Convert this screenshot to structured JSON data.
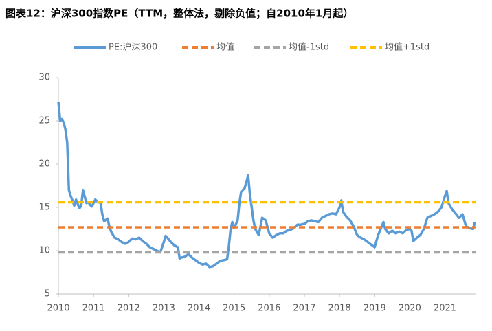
{
  "chart_data": {
    "type": "line",
    "title": "图表12：沪深300指数PE（TTM，整体法，剔除负值；自2010年1月起）",
    "x": [
      2010.0,
      2010.05,
      2010.1,
      2010.15,
      2010.2,
      2010.25,
      2010.3,
      2010.35,
      2010.4,
      2010.45,
      2010.5,
      2010.55,
      2010.6,
      2010.65,
      2010.7,
      2010.75,
      2010.8,
      2010.85,
      2010.9,
      2010.95,
      2011.0,
      2011.05,
      2011.1,
      2011.2,
      2011.25,
      2011.3,
      2011.4,
      2011.45,
      2011.5,
      2011.6,
      2011.7,
      2011.8,
      2011.9,
      2012.0,
      2012.1,
      2012.2,
      2012.3,
      2012.4,
      2012.5,
      2012.6,
      2012.7,
      2012.8,
      2012.9,
      2013.0,
      2013.05,
      2013.1,
      2013.2,
      2013.3,
      2013.4,
      2013.45,
      2013.5,
      2013.6,
      2013.7,
      2013.8,
      2013.9,
      2014.0,
      2014.1,
      2014.2,
      2014.3,
      2014.4,
      2014.5,
      2014.6,
      2014.7,
      2014.8,
      2014.85,
      2014.9,
      2014.95,
      2015.0,
      2015.1,
      2015.15,
      2015.2,
      2015.3,
      2015.4,
      2015.45,
      2015.5,
      2015.55,
      2015.6,
      2015.7,
      2015.8,
      2015.9,
      2016.0,
      2016.1,
      2016.2,
      2016.3,
      2016.4,
      2016.5,
      2016.6,
      2016.7,
      2016.8,
      2016.9,
      2017.0,
      2017.1,
      2017.2,
      2017.3,
      2017.4,
      2017.5,
      2017.6,
      2017.7,
      2017.8,
      2017.9,
      2018.0,
      2018.05,
      2018.1,
      2018.2,
      2018.3,
      2018.4,
      2018.5,
      2018.6,
      2018.7,
      2018.8,
      2018.9,
      2019.0,
      2019.1,
      2019.2,
      2019.25,
      2019.3,
      2019.4,
      2019.5,
      2019.6,
      2019.7,
      2019.8,
      2019.9,
      2020.0,
      2020.05,
      2020.1,
      2020.2,
      2020.3,
      2020.4,
      2020.5,
      2020.6,
      2020.7,
      2020.8,
      2020.9,
      2021.0,
      2021.05,
      2021.1,
      2021.2,
      2021.3,
      2021.4,
      2021.5,
      2021.55,
      2021.6,
      2021.7,
      2021.8,
      2021.85
    ],
    "series": [
      {
        "name": "PE:沪深300",
        "color": "#5b9bd5",
        "values": [
          27.2,
          25,
          25.2,
          24.8,
          24.0,
          22.5,
          17,
          16.3,
          15.8,
          15.2,
          15.9,
          15.4,
          14.9,
          15.2,
          17.0,
          16.2,
          15.5,
          15.6,
          15.3,
          15.1,
          15.5,
          15.9,
          15.7,
          15.5,
          14.2,
          13.4,
          13.7,
          12.8,
          12.2,
          11.5,
          11.3,
          11.0,
          10.8,
          11.0,
          11.4,
          11.3,
          11.5,
          11.1,
          10.8,
          10.4,
          10.2,
          10.0,
          9.8,
          11.0,
          11.7,
          11.5,
          11.0,
          10.6,
          10.4,
          9.1,
          9.2,
          9.3,
          9.6,
          9.2,
          8.9,
          8.6,
          8.4,
          8.5,
          8.1,
          8.2,
          8.5,
          8.8,
          8.9,
          9.0,
          10.5,
          12.5,
          13.3,
          12.6,
          13.5,
          15.5,
          16.8,
          17.2,
          18.7,
          16.5,
          15.0,
          13.5,
          12.5,
          11.8,
          13.8,
          13.5,
          12.0,
          11.5,
          11.8,
          12.0,
          12.0,
          12.3,
          12.4,
          12.6,
          13.0,
          13.0,
          13.1,
          13.4,
          13.5,
          13.4,
          13.3,
          13.8,
          14.0,
          14.2,
          14.3,
          14.2,
          15.0,
          15.8,
          14.5,
          13.9,
          13.5,
          12.8,
          11.8,
          11.5,
          11.3,
          11.0,
          10.7,
          10.4,
          11.8,
          12.8,
          13.3,
          12.5,
          12.0,
          12.3,
          12.0,
          12.2,
          12.0,
          12.4,
          12.5,
          12.3,
          11.1,
          11.5,
          11.8,
          12.5,
          13.8,
          14.0,
          14.2,
          14.5,
          15.0,
          16.3,
          16.9,
          15.5,
          14.8,
          14.3,
          13.8,
          14.2,
          13.5,
          12.8,
          12.6,
          12.5,
          13.3
        ]
      },
      {
        "name": "均值",
        "color": "#ed7d31",
        "dashed": true,
        "value": 12.7
      },
      {
        "name": "均值-1std",
        "color": "#a5a5a5",
        "dashed": true,
        "value": 9.8
      },
      {
        "name": "均值+1std",
        "color": "#ffc000",
        "dashed": true,
        "value": 15.6
      }
    ],
    "xlim": [
      2010,
      2021.87
    ],
    "xticks": [
      2010,
      2011,
      2012,
      2013,
      2014,
      2015,
      2016,
      2017,
      2018,
      2019,
      2020,
      2021
    ],
    "ylim": [
      5,
      30
    ],
    "yticks": [
      5,
      10,
      15,
      20,
      25,
      30
    ],
    "grid": false,
    "legend": "top"
  }
}
